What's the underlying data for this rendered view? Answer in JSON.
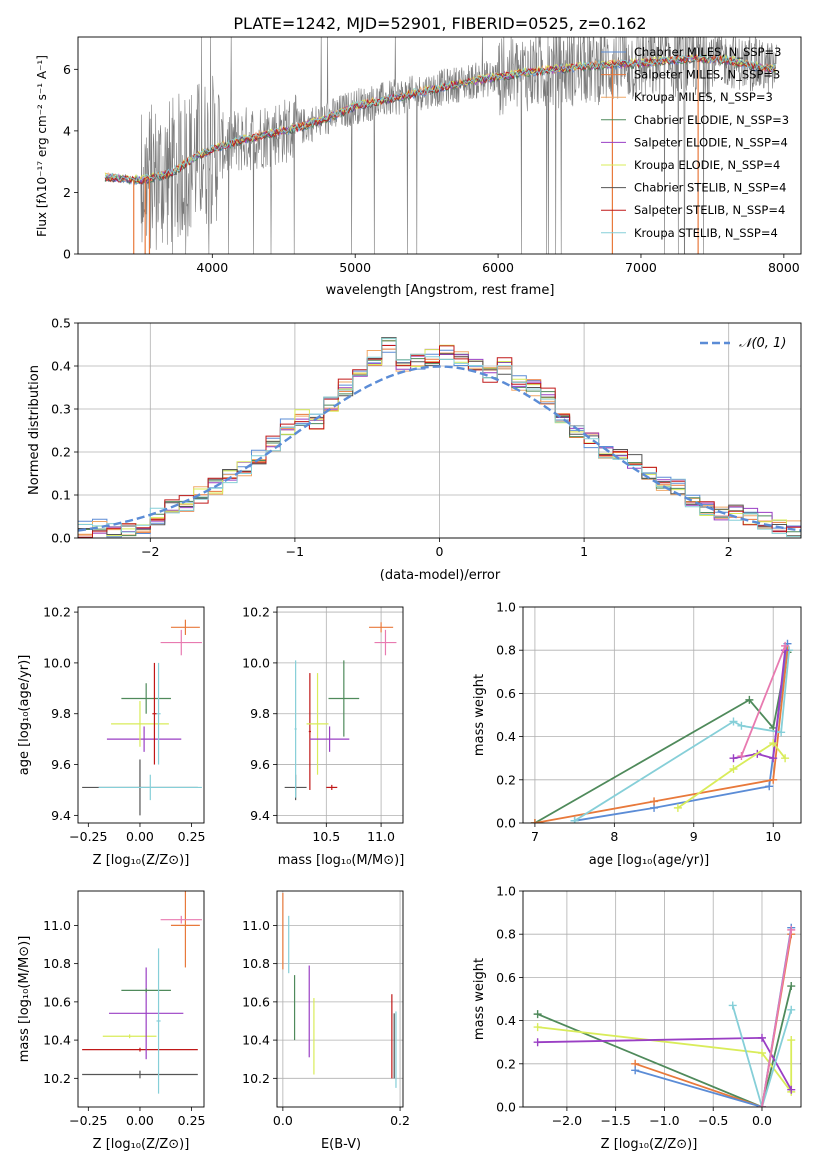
{
  "chart_data": [
    {
      "type": "line",
      "title": "PLATE=1242, MJD=52901, FIBERID=0525, z=0.162",
      "xlabel": "wavelength [Angstrom, rest frame]",
      "ylabel": "Flux [fλ10⁻¹⁷ erg cm⁻² s⁻¹ A⁻¹]",
      "xlim": [
        3060,
        8120
      ],
      "ylim": [
        0,
        7.05
      ],
      "xticks": [
        "4000",
        "5000",
        "6000",
        "7000",
        "8000"
      ],
      "yticks": [
        "0",
        "2",
        "4",
        "6"
      ],
      "grid": false,
      "legend_position": "top-right",
      "legend": [
        {
          "label": "Chabrier MILES, N_SSP=3",
          "color": "#5b8cd6"
        },
        {
          "label": "Salpeter MILES, N_SSP=3",
          "color": "#e8793b"
        },
        {
          "label": "Kroupa MILES, N_SSP=3",
          "color": "#f0a868"
        },
        {
          "label": "Chabrier ELODIE, N_SSP=3",
          "color": "#4f8a5b"
        },
        {
          "label": "Salpeter ELODIE, N_SSP=4",
          "color": "#9a3fc4"
        },
        {
          "label": "Kroupa ELODIE, N_SSP=4",
          "color": "#d9ec5a"
        },
        {
          "label": "Chabrier STELIB, N_SSP=4",
          "color": "#555555"
        },
        {
          "label": "Salpeter STELIB, N_SSP=4",
          "color": "#c01818"
        },
        {
          "label": "Kroupa STELIB, N_SSP=4",
          "color": "#86cfd8"
        }
      ],
      "continuum": {
        "x": [
          3250,
          3500,
          3700,
          3900,
          4000,
          4200,
          4400,
          4600,
          4800,
          5000,
          5200,
          5400,
          5600,
          5800,
          6000,
          6200,
          6400,
          6600,
          6800,
          7000,
          7200,
          7400,
          7600,
          7800,
          7950
        ],
        "y": [
          2.5,
          2.4,
          2.6,
          3.2,
          3.4,
          3.7,
          3.9,
          4.1,
          4.4,
          4.8,
          5.0,
          5.2,
          5.4,
          5.6,
          5.75,
          5.9,
          6.0,
          6.1,
          6.15,
          6.2,
          6.3,
          6.35,
          6.3,
          6.1,
          6.0
        ]
      }
    },
    {
      "type": "line",
      "title": "",
      "xlabel": "(data-model)/error",
      "ylabel": "Normed distribution",
      "xlim": [
        -2.5,
        2.5
      ],
      "ylim": [
        0,
        0.5
      ],
      "xticks": [
        "−2",
        "−1",
        "0",
        "1",
        "2"
      ],
      "yticks": [
        "0.0",
        "0.1",
        "0.2",
        "0.3",
        "0.4",
        "0.5"
      ],
      "grid": true,
      "legend_position": "top-right",
      "gaussian_label": "𝒩(0, 1)",
      "gaussian": {
        "mean": 0,
        "sigma": 1,
        "color": "#5b8cd6"
      },
      "histogram": {
        "x": [
          -2.5,
          -2.4,
          -2.3,
          -2.2,
          -2.1,
          -2.0,
          -1.9,
          -1.8,
          -1.7,
          -1.6,
          -1.5,
          -1.4,
          -1.3,
          -1.2,
          -1.1,
          -1.0,
          -0.9,
          -0.8,
          -0.7,
          -0.6,
          -0.5,
          -0.4,
          -0.3,
          -0.2,
          -0.1,
          0.0,
          0.1,
          0.2,
          0.3,
          0.4,
          0.5,
          0.6,
          0.7,
          0.8,
          0.9,
          1.0,
          1.1,
          1.2,
          1.3,
          1.4,
          1.5,
          1.6,
          1.7,
          1.8,
          1.9,
          2.0,
          2.1,
          2.2,
          2.3,
          2.4
        ],
        "y": [
          0.02,
          0.03,
          0.02,
          0.02,
          0.03,
          0.05,
          0.07,
          0.08,
          0.1,
          0.12,
          0.14,
          0.16,
          0.19,
          0.22,
          0.26,
          0.28,
          0.27,
          0.31,
          0.35,
          0.38,
          0.42,
          0.45,
          0.4,
          0.41,
          0.42,
          0.43,
          0.42,
          0.4,
          0.38,
          0.4,
          0.36,
          0.35,
          0.33,
          0.27,
          0.25,
          0.23,
          0.2,
          0.19,
          0.18,
          0.15,
          0.13,
          0.12,
          0.08,
          0.07,
          0.06,
          0.06,
          0.05,
          0.04,
          0.03,
          0.02
        ]
      }
    },
    {
      "type": "scatter",
      "xlabel": "Z [log₁₀(Z/Z⊙)]",
      "ylabel": "age  [log₁₀(age/yr)]",
      "xlim": [
        -0.3,
        0.31
      ],
      "ylim": [
        9.37,
        10.22
      ],
      "xticks": [
        "−0.25",
        "0.00",
        "0.25"
      ],
      "yticks": [
        "9.4",
        "9.6",
        "9.8",
        "10.0",
        "10.2"
      ],
      "grid": false,
      "points": [
        {
          "x": 0.0,
          "y": 9.51,
          "xerr": 0.28,
          "yerr": 0.11,
          "color": "#555555"
        },
        {
          "x": 0.05,
          "y": 9.51,
          "xerr": 0.25,
          "yerr": 0.05,
          "color": "#86cfd8"
        },
        {
          "x": 0.02,
          "y": 9.7,
          "xerr": 0.18,
          "yerr": 0.05,
          "color": "#9a3fc4"
        },
        {
          "x": 0.0,
          "y": 9.76,
          "xerr": 0.14,
          "yerr": 0.09,
          "color": "#d9ec5a"
        },
        {
          "x": 0.03,
          "y": 9.86,
          "xerr": 0.12,
          "yerr": 0.06,
          "color": "#4f8a5b"
        },
        {
          "x": 0.07,
          "y": 9.8,
          "xerr": 0.01,
          "yerr": 0.2,
          "color": "#c01818"
        },
        {
          "x": 0.22,
          "y": 10.14,
          "xerr": 0.07,
          "yerr": 0.03,
          "color": "#e8793b"
        },
        {
          "x": 0.2,
          "y": 10.08,
          "xerr": 0.1,
          "yerr": 0.05,
          "color": "#e87ab0"
        },
        {
          "x": 0.09,
          "y": 9.8,
          "xerr": 0.01,
          "yerr": 0.2,
          "color": "#86cfd8"
        }
      ]
    },
    {
      "type": "scatter",
      "xlabel": "mass [log₁₀(M/M⊙)]",
      "ylabel": "",
      "xlim": [
        10.05,
        11.2
      ],
      "ylim": [
        9.37,
        10.22
      ],
      "xticks": [
        "10.5",
        "11.0"
      ],
      "yticks": [
        "9.4",
        "9.6",
        "9.8",
        "10.0",
        "10.2"
      ],
      "grid": true,
      "points": [
        {
          "x": 10.22,
          "y": 9.51,
          "xerr": 0.1,
          "yerr": 0.05,
          "color": "#555555"
        },
        {
          "x": 10.22,
          "y": 9.74,
          "xerr": 0.01,
          "yerr": 0.27,
          "color": "#86cfd8"
        },
        {
          "x": 10.35,
          "y": 9.73,
          "xerr": 0.01,
          "yerr": 0.23,
          "color": "#c01818"
        },
        {
          "x": 10.42,
          "y": 9.76,
          "xerr": 0.1,
          "yerr": 0.2,
          "color": "#d9ec5a"
        },
        {
          "x": 10.53,
          "y": 9.7,
          "xerr": 0.18,
          "yerr": 0.05,
          "color": "#9a3fc4"
        },
        {
          "x": 10.66,
          "y": 9.86,
          "xerr": 0.14,
          "yerr": 0.15,
          "color": "#4f8a5b"
        },
        {
          "x": 10.55,
          "y": 9.51,
          "xerr": 0.05,
          "yerr": 0.01,
          "color": "#c01818"
        },
        {
          "x": 11.0,
          "y": 10.14,
          "xerr": 0.11,
          "yerr": 0.02,
          "color": "#e8793b"
        },
        {
          "x": 11.04,
          "y": 10.08,
          "xerr": 0.1,
          "yerr": 0.05,
          "color": "#e87ab0"
        }
      ]
    },
    {
      "type": "line",
      "xlabel": "age  [log₁₀(age/yr)]",
      "ylabel": "mass weight",
      "xlim": [
        6.85,
        10.35
      ],
      "ylim": [
        0,
        1
      ],
      "xticks": [
        "7",
        "8",
        "9",
        "10"
      ],
      "yticks": [
        "0.0",
        "0.2",
        "0.4",
        "0.6",
        "0.8",
        "1.0"
      ],
      "grid": true,
      "series": [
        {
          "color": "#4f8a5b",
          "x": [
            7.0,
            9.7,
            10.0,
            10.18
          ],
          "y": [
            0.0,
            0.57,
            0.44,
            0.79
          ]
        },
        {
          "color": "#5b8cd6",
          "x": [
            7.5,
            8.5,
            9.95,
            10.18
          ],
          "y": [
            0.01,
            0.07,
            0.17,
            0.83
          ]
        },
        {
          "color": "#e8793b",
          "x": [
            7.0,
            8.5,
            10.0,
            10.18
          ],
          "y": [
            0.0,
            0.1,
            0.2,
            0.8
          ]
        },
        {
          "color": "#86cfd8",
          "x": [
            7.5,
            9.5,
            9.6,
            10.1,
            10.2
          ],
          "y": [
            0.01,
            0.47,
            0.45,
            0.42,
            0.8
          ]
        },
        {
          "color": "#9a3fc4",
          "x": [
            9.5,
            9.8,
            10.0,
            10.15
          ],
          "y": [
            0.3,
            0.32,
            0.3,
            0.8
          ]
        },
        {
          "color": "#d9ec5a",
          "x": [
            8.8,
            9.5,
            10.0,
            10.15
          ],
          "y": [
            0.07,
            0.25,
            0.37,
            0.3
          ]
        },
        {
          "color": "#e87ab0",
          "x": [
            9.6,
            10.15
          ],
          "y": [
            0.31,
            0.82
          ]
        }
      ]
    },
    {
      "type": "scatter",
      "xlabel": "Z [log₁₀(Z/Z⊙)]",
      "ylabel": "mass [log₁₀(M/M⊙)]",
      "xlim": [
        -0.3,
        0.31
      ],
      "ylim": [
        10.05,
        11.18
      ],
      "xticks": [
        "−0.25",
        "0.00",
        "0.25"
      ],
      "yticks": [
        "10.2",
        "10.4",
        "10.6",
        "10.8",
        "11.0"
      ],
      "grid": false,
      "points": [
        {
          "x": 0.0,
          "y": 10.22,
          "xerr": 0.28,
          "yerr": 0.02,
          "color": "#555555"
        },
        {
          "x": 0.0,
          "y": 10.35,
          "xerr": 0.28,
          "yerr": 0.01,
          "color": "#c01818"
        },
        {
          "x": -0.05,
          "y": 10.42,
          "xerr": 0.13,
          "yerr": 0.01,
          "color": "#d9ec5a"
        },
        {
          "x": 0.03,
          "y": 10.54,
          "xerr": 0.18,
          "yerr": 0.24,
          "color": "#9a3fc4"
        },
        {
          "x": 0.03,
          "y": 10.66,
          "xerr": 0.12,
          "yerr": 0.01,
          "color": "#4f8a5b"
        },
        {
          "x": 0.09,
          "y": 10.5,
          "xerr": 0.01,
          "yerr": 0.38,
          "color": "#86cfd8"
        },
        {
          "x": 0.22,
          "y": 11.0,
          "xerr": 0.07,
          "yerr": 0.22,
          "color": "#e8793b"
        },
        {
          "x": 0.2,
          "y": 11.03,
          "xerr": 0.1,
          "yerr": 0.02,
          "color": "#e87ab0"
        }
      ]
    },
    {
      "type": "scatter",
      "xlabel": "E(B-V)",
      "ylabel": "",
      "xlim": [
        -0.01,
        0.205
      ],
      "ylim": [
        10.05,
        11.18
      ],
      "xticks": [
        "0.0",
        "0.2"
      ],
      "yticks": [
        "10.2",
        "10.4",
        "10.6",
        "10.8",
        "11.0"
      ],
      "grid": true,
      "points": [
        {
          "x": 0.0,
          "y": 10.97,
          "yerr": 0.2,
          "color": "#e8793b"
        },
        {
          "x": 0.01,
          "y": 10.9,
          "yerr": 0.15,
          "color": "#86cfd8"
        },
        {
          "x": 0.02,
          "y": 10.57,
          "yerr": 0.17,
          "color": "#4f8a5b"
        },
        {
          "x": 0.045,
          "y": 10.55,
          "yerr": 0.24,
          "color": "#9a3fc4"
        },
        {
          "x": 0.053,
          "y": 10.42,
          "yerr": 0.2,
          "color": "#d9ec5a"
        },
        {
          "x": 0.186,
          "y": 10.42,
          "yerr": 0.22,
          "color": "#c01818"
        },
        {
          "x": 0.19,
          "y": 10.37,
          "yerr": 0.17,
          "color": "#555555"
        },
        {
          "x": 0.193,
          "y": 10.35,
          "yerr": 0.2,
          "color": "#86cfd8"
        }
      ]
    },
    {
      "type": "line",
      "xlabel": "Z [log₁₀(Z/Z⊙)]",
      "ylabel": "mass weight",
      "xlim": [
        -2.45,
        0.4
      ],
      "ylim": [
        0,
        1
      ],
      "xticks": [
        "−2.0",
        "−1.5",
        "−1.0",
        "−0.5",
        "0.0"
      ],
      "yticks": [
        "0.0",
        "0.2",
        "0.4",
        "0.6",
        "0.8",
        "1.0"
      ],
      "grid": true,
      "series": [
        {
          "color": "#4f8a5b",
          "x": [
            -2.3,
            0.0,
            0.3
          ],
          "y": [
            0.43,
            0.0,
            0.56
          ]
        },
        {
          "color": "#d9ec5a",
          "x": [
            -2.3,
            0.0,
            0.3,
            0.3
          ],
          "y": [
            0.37,
            0.25,
            0.07,
            0.31
          ]
        },
        {
          "color": "#9a3fc4",
          "x": [
            -2.3,
            0.0,
            0.3
          ],
          "y": [
            0.3,
            0.32,
            0.08
          ]
        },
        {
          "color": "#e8793b",
          "x": [
            -1.3,
            0.0,
            0.3
          ],
          "y": [
            0.2,
            0.0,
            0.8
          ]
        },
        {
          "color": "#5b8cd6",
          "x": [
            -1.3,
            0.0,
            0.3
          ],
          "y": [
            0.17,
            0.0,
            0.83
          ]
        },
        {
          "color": "#86cfd8",
          "x": [
            -0.3,
            0.0,
            0.3
          ],
          "y": [
            0.47,
            0.0,
            0.45
          ]
        },
        {
          "color": "#e87ab0",
          "x": [
            0.0,
            0.3
          ],
          "y": [
            0.0,
            0.82
          ]
        }
      ]
    }
  ]
}
